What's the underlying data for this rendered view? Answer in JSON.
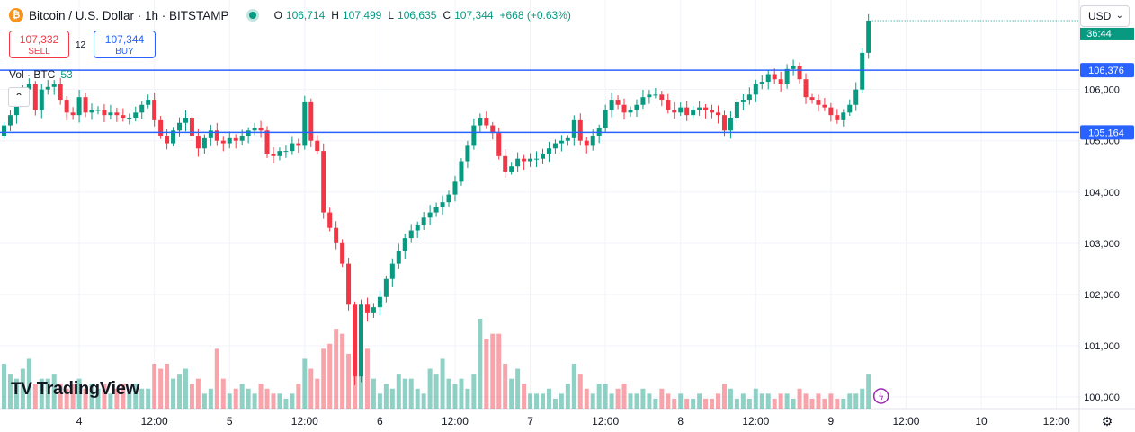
{
  "header": {
    "coin_symbol": "₿",
    "title": "Bitcoin / U.S. Dollar · 1h · BITSTAMP",
    "ohlc": [
      {
        "key": "O",
        "value": "106,714"
      },
      {
        "key": "H",
        "value": "107,499"
      },
      {
        "key": "L",
        "value": "106,635"
      },
      {
        "key": "C",
        "value": "107,344"
      }
    ],
    "change": "+668 (+0.63%)"
  },
  "trade": {
    "sell_price": "107,332",
    "sell_label": "SELL",
    "spread": "12",
    "buy_price": "107,344",
    "buy_label": "BUY"
  },
  "volume_legend": {
    "label": "Vol · BTC",
    "value": "53"
  },
  "collapse_glyph": "⌃",
  "currency": {
    "label": "USD",
    "chevron": "⌄"
  },
  "branding": {
    "mark": "TV",
    "name": "TradingView"
  },
  "settings_glyph": "⚙",
  "colors": {
    "up": "#089981",
    "down": "#f23645",
    "line": "#2962ff",
    "grid": "#f0f3fa"
  },
  "chart_data": {
    "type": "candlestick",
    "symbol": "BTCUSD",
    "interval": "1h",
    "y_ticks": [
      100000,
      101000,
      102000,
      103000,
      104000,
      105000,
      106000
    ],
    "y_tick_labels": [
      "100,000",
      "101,000",
      "102,000",
      "103,000",
      "104,000",
      "105,000",
      "106,000"
    ],
    "ylim": [
      99850,
      107800
    ],
    "x_ticks": [
      {
        "label": "4",
        "index": 12
      },
      {
        "label": "12:00",
        "index": 24
      },
      {
        "label": "5",
        "index": 36
      },
      {
        "label": "12:00",
        "index": 48
      },
      {
        "label": "6",
        "index": 60
      },
      {
        "label": "12:00",
        "index": 72
      },
      {
        "label": "7",
        "index": 84
      },
      {
        "label": "12:00",
        "index": 96
      },
      {
        "label": "8",
        "index": 108
      },
      {
        "label": "12:00",
        "index": 120
      },
      {
        "label": "9",
        "index": 132
      },
      {
        "label": "12:00",
        "index": 144
      },
      {
        "label": "10",
        "index": 156
      },
      {
        "label": "12:00",
        "index": 168
      }
    ],
    "horizontal_lines": [
      {
        "value": 106376,
        "label": "106,376"
      },
      {
        "value": 105164,
        "label": "105,164"
      }
    ],
    "current_price": {
      "value": 107344,
      "countdown": "36:44"
    },
    "closes": [
      105300,
      105500,
      105800,
      106000,
      106100,
      105600,
      106000,
      106050,
      106100,
      105800,
      105550,
      105500,
      105850,
      105550,
      105600,
      105600,
      105500,
      105550,
      105500,
      105450,
      105450,
      105550,
      105700,
      105800,
      105400,
      105100,
      104950,
      105200,
      105350,
      105450,
      105100,
      104850,
      105050,
      105200,
      105000,
      104950,
      105050,
      105000,
      105100,
      105200,
      105250,
      105200,
      104750,
      104700,
      104800,
      104800,
      104950,
      104900,
      105750,
      105000,
      104800,
      103600,
      103300,
      103000,
      102600,
      101800,
      100400,
      101800,
      101650,
      101750,
      101950,
      102300,
      102600,
      102850,
      103100,
      103250,
      103350,
      103500,
      103600,
      103700,
      103800,
      103950,
      104200,
      104600,
      104900,
      105300,
      105450,
      105300,
      105150,
      104700,
      104400,
      104500,
      104650,
      104600,
      104650,
      104650,
      104750,
      104850,
      104950,
      105000,
      105050,
      105400,
      105000,
      104900,
      105100,
      105250,
      105600,
      105800,
      105700,
      105550,
      105600,
      105700,
      105850,
      105900,
      105900,
      105800,
      105600,
      105550,
      105650,
      105500,
      105600,
      105650,
      105600,
      105550,
      105500,
      105200,
      105450,
      105750,
      105800,
      105900,
      106100,
      106150,
      106300,
      106200,
      106100,
      106400,
      106450,
      106200,
      105850,
      105800,
      105700,
      105650,
      105500,
      105400,
      105550,
      105700,
      106000,
      106714,
      107344
    ],
    "volumes": [
      0.9,
      0.7,
      0.6,
      0.8,
      1.0,
      0.5,
      0.6,
      0.6,
      0.7,
      0.5,
      0.4,
      0.5,
      0.6,
      0.4,
      0.5,
      0.4,
      0.5,
      0.3,
      0.4,
      0.5,
      0.4,
      0.5,
      0.4,
      0.4,
      0.9,
      0.8,
      0.9,
      0.6,
      0.7,
      0.8,
      0.5,
      0.6,
      0.3,
      0.4,
      1.2,
      0.6,
      0.3,
      0.4,
      0.5,
      0.4,
      0.3,
      0.5,
      0.4,
      0.3,
      0.3,
      0.2,
      0.3,
      0.5,
      1.0,
      0.8,
      0.6,
      1.2,
      1.3,
      1.6,
      1.5,
      1.1,
      1.4,
      1.4,
      1.2,
      0.6,
      0.3,
      0.5,
      0.4,
      0.7,
      0.6,
      0.6,
      0.4,
      0.3,
      0.8,
      0.7,
      1.0,
      0.6,
      0.5,
      0.6,
      0.4,
      0.7,
      1.8,
      1.4,
      1.5,
      1.5,
      0.9,
      0.6,
      0.8,
      0.5,
      0.3,
      0.3,
      0.3,
      0.4,
      0.2,
      0.3,
      0.5,
      0.9,
      0.7,
      0.4,
      0.3,
      0.5,
      0.5,
      0.3,
      0.4,
      0.5,
      0.3,
      0.3,
      0.4,
      0.3,
      0.2,
      0.4,
      0.3,
      0.2,
      0.3,
      0.2,
      0.2,
      0.3,
      0.2,
      0.2,
      0.3,
      0.5,
      0.4,
      0.2,
      0.3,
      0.2,
      0.4,
      0.3,
      0.3,
      0.2,
      0.3,
      0.3,
      0.2,
      0.4,
      0.3,
      0.2,
      0.3,
      0.2,
      0.3,
      0.2,
      0.2,
      0.3,
      0.3,
      0.4,
      0.7
    ]
  }
}
